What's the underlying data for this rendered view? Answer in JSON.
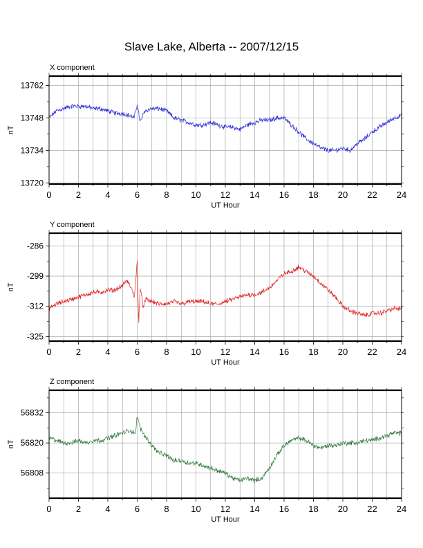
{
  "title": "Slave Lake, Alberta -- 2007/12/15",
  "chart_data": [
    {
      "type": "line",
      "panel_title": "X component",
      "xlabel": "UT Hour",
      "ylabel": "nT",
      "xlim": [
        0,
        24
      ],
      "xticks": [
        0,
        2,
        4,
        6,
        8,
        10,
        12,
        14,
        16,
        18,
        20,
        22,
        24
      ],
      "ylim": [
        13719.5,
        13766
      ],
      "yticks": [
        13720,
        13734,
        13748,
        13762
      ],
      "grid": true,
      "color": "#2a2ad8",
      "series": [
        {
          "x": [
            0,
            0.5,
            1,
            1.5,
            2,
            2.5,
            3,
            3.5,
            4,
            4.5,
            5,
            5.5,
            5.8,
            6,
            6.2,
            6.5,
            7,
            7.5,
            8,
            8.5,
            9,
            9.5,
            10,
            10.5,
            11,
            11.5,
            12,
            12.5,
            13,
            13.5,
            14,
            14.5,
            15,
            15.5,
            16,
            16.5,
            17,
            17.5,
            18,
            18.5,
            19,
            19.5,
            20,
            20.5,
            21,
            21.5,
            22,
            22.5,
            23,
            23.5,
            24
          ],
          "y": [
            13748,
            13751,
            13752,
            13753,
            13753,
            13753,
            13752,
            13752,
            13751,
            13750,
            13750,
            13749,
            13748,
            13754,
            13746,
            13751,
            13752,
            13752,
            13751,
            13748,
            13747,
            13746,
            13745,
            13745,
            13746,
            13745,
            13744,
            13744,
            13743,
            13745,
            13746,
            13747,
            13747,
            13748,
            13748,
            13745,
            13742,
            13739,
            13737,
            13735,
            13734,
            13734,
            13735,
            13734,
            13737,
            13739,
            13742,
            13744,
            13746,
            13748,
            13749
          ]
        }
      ]
    },
    {
      "type": "line",
      "panel_title": "Y component",
      "xlabel": "UT Hour",
      "ylabel": "nT",
      "xlim": [
        0,
        24
      ],
      "xticks": [
        0,
        2,
        4,
        6,
        8,
        10,
        12,
        14,
        16,
        18,
        20,
        22,
        24
      ],
      "ylim": [
        -327,
        -280.5
      ],
      "yticks": [
        -286,
        -299,
        -312,
        -325
      ],
      "grid": true,
      "color": "#e02020",
      "series": [
        {
          "x": [
            0,
            0.5,
            1,
            1.5,
            2,
            2.5,
            3,
            3.5,
            4,
            4.5,
            5,
            5.3,
            5.6,
            5.8,
            6,
            6.1,
            6.2,
            6.4,
            6.6,
            7,
            7.5,
            8,
            8.5,
            9,
            9.5,
            10,
            10.5,
            11,
            11.5,
            12,
            12.5,
            13,
            13.5,
            14,
            14.5,
            15,
            15.5,
            16,
            16.5,
            17,
            17.5,
            18,
            18.5,
            19,
            19.5,
            20,
            20.5,
            21,
            21.5,
            22,
            22.5,
            23,
            23.5,
            24
          ],
          "y": [
            -313,
            -311,
            -310,
            -309,
            -308,
            -307,
            -306,
            -306,
            -305,
            -305,
            -303,
            -301,
            -304,
            -308,
            -293,
            -319,
            -304,
            -312,
            -309,
            -310,
            -311,
            -311,
            -310,
            -311,
            -310,
            -310,
            -310,
            -311,
            -311,
            -310,
            -309,
            -308,
            -307,
            -307,
            -306,
            -304,
            -301,
            -298,
            -297,
            -295,
            -297,
            -299,
            -302,
            -305,
            -308,
            -312,
            -314,
            -315,
            -316,
            -315,
            -315,
            -314,
            -313,
            -313
          ]
        }
      ]
    },
    {
      "type": "line",
      "panel_title": "Z component",
      "xlabel": "UT Hour",
      "ylabel": "nT",
      "xlim": [
        0,
        24
      ],
      "xticks": [
        0,
        2,
        4,
        6,
        8,
        10,
        12,
        14,
        16,
        18,
        20,
        22,
        24
      ],
      "ylim": [
        56798,
        56841
      ],
      "yticks": [
        56808,
        56820,
        56832
      ],
      "grid": true,
      "color": "#2e7a3a",
      "series": [
        {
          "x": [
            0,
            0.5,
            1,
            1.5,
            2,
            2.5,
            3,
            3.5,
            4,
            4.5,
            5,
            5.5,
            5.9,
            6,
            6.2,
            6.5,
            7,
            7.5,
            8,
            8.5,
            9,
            9.5,
            10,
            10.5,
            11,
            11.5,
            12,
            12.5,
            13,
            13.5,
            14,
            14.5,
            15,
            15.5,
            16,
            16.5,
            17,
            17.5,
            18,
            18.5,
            19,
            19.5,
            20,
            20.5,
            21,
            21.5,
            22,
            22.5,
            23,
            23.5,
            24
          ],
          "y": [
            56822,
            56821,
            56820,
            56820,
            56821,
            56820,
            56821,
            56821,
            56822,
            56823,
            56824,
            56825,
            56824,
            56831,
            56826,
            56823,
            56819,
            56816,
            56815,
            56813,
            56813,
            56812,
            56812,
            56811,
            56810,
            56809,
            56808,
            56806,
            56805,
            56806,
            56805,
            56806,
            56810,
            56815,
            56819,
            56821,
            56822,
            56821,
            56819,
            56818,
            56819,
            56819,
            56820,
            56820,
            56820,
            56821,
            56821,
            56822,
            56823,
            56824,
            56824
          ]
        }
      ]
    }
  ]
}
